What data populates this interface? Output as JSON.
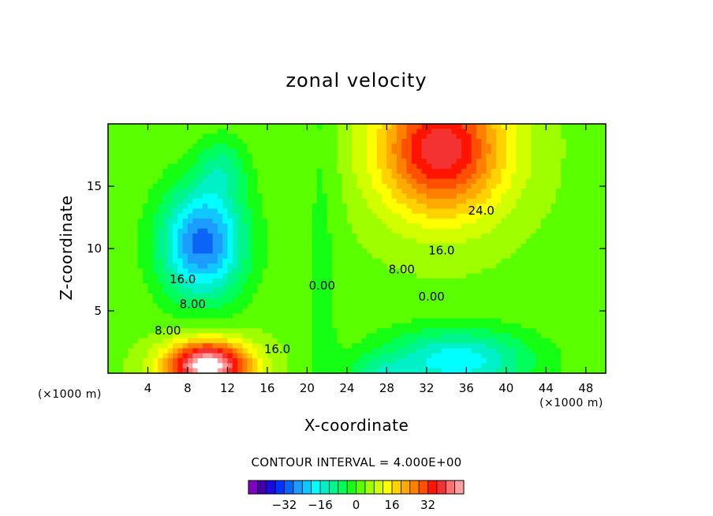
{
  "title": "zonal velocity",
  "x_unit": "(×1000 m)",
  "y_unit_corner": "(×1000 m)",
  "contour_interval_text": "CONTOUR INTERVAL = 4.000E+00",
  "chart_data": {
    "type": "heatmap",
    "title": "zonal velocity",
    "xlabel": "X-coordinate",
    "ylabel": "Z-coordinate",
    "xlim": [
      0,
      50
    ],
    "ylim": [
      0,
      20
    ],
    "x_ticks": [
      4,
      8,
      12,
      16,
      20,
      24,
      28,
      32,
      36,
      40,
      44,
      48
    ],
    "y_ticks": [
      5,
      10,
      15
    ],
    "contour_interval": 4,
    "contour_labels": [
      {
        "text": "24.0",
        "x": 37.5,
        "y": 13.0
      },
      {
        "text": "16.0",
        "x": 33.5,
        "y": 9.8
      },
      {
        "text": "8.00",
        "x": 29.5,
        "y": 8.3
      },
      {
        "text": "0.00",
        "x": 32.5,
        "y": 6.1
      },
      {
        "text": "0.00",
        "x": 21.5,
        "y": 7.0
      },
      {
        "text": "16.0",
        "x": 7.5,
        "y": 7.5
      },
      {
        "text": "8.00",
        "x": 8.5,
        "y": 5.5
      },
      {
        "text": "8.00",
        "x": 6.0,
        "y": 3.4
      },
      {
        "text": "16.0",
        "x": 17.0,
        "y": 1.9
      }
    ],
    "features": [
      {
        "x": 10.0,
        "y": 0.6,
        "amplitude": 50,
        "sx": 4.2,
        "sz": 2.0
      },
      {
        "x": 9.5,
        "y": 10.5,
        "amplitude": -33,
        "sx": 4.2,
        "sz": 4.5
      },
      {
        "x": 11.5,
        "y": 16.5,
        "amplitude": -10,
        "sx": 2.5,
        "sz": 2.5
      },
      {
        "x": 33.5,
        "y": 18.0,
        "amplitude": 36,
        "sx": 6.5,
        "sz": 5.5
      },
      {
        "x": 35.0,
        "y": 1.0,
        "amplitude": -22,
        "sx": 7.5,
        "sz": 2.5
      },
      {
        "x": 27.0,
        "y": 0.0,
        "amplitude": -9,
        "sx": 3.0,
        "sz": 1.3
      }
    ],
    "colorbar": {
      "colors": [
        "#7f00bf",
        "#3f00a8",
        "#1a0ae0",
        "#0033ff",
        "#0a64f5",
        "#1c9cff",
        "#10c8ff",
        "#00ffff",
        "#00f0c8",
        "#00f58c",
        "#00ff5a",
        "#14ff14",
        "#5aff00",
        "#9fff00",
        "#d2ff00",
        "#ffff00",
        "#ffd200",
        "#ffaa00",
        "#ff8000",
        "#ff5000",
        "#ff1400",
        "#f53232",
        "#ff7070",
        "#ffa0a0"
      ],
      "tick_labels": [
        "−32",
        "−16",
        "0",
        "16",
        "32"
      ],
      "tick_values": [
        -32,
        -16,
        0,
        16,
        32
      ],
      "min": -48,
      "max": 48
    }
  }
}
